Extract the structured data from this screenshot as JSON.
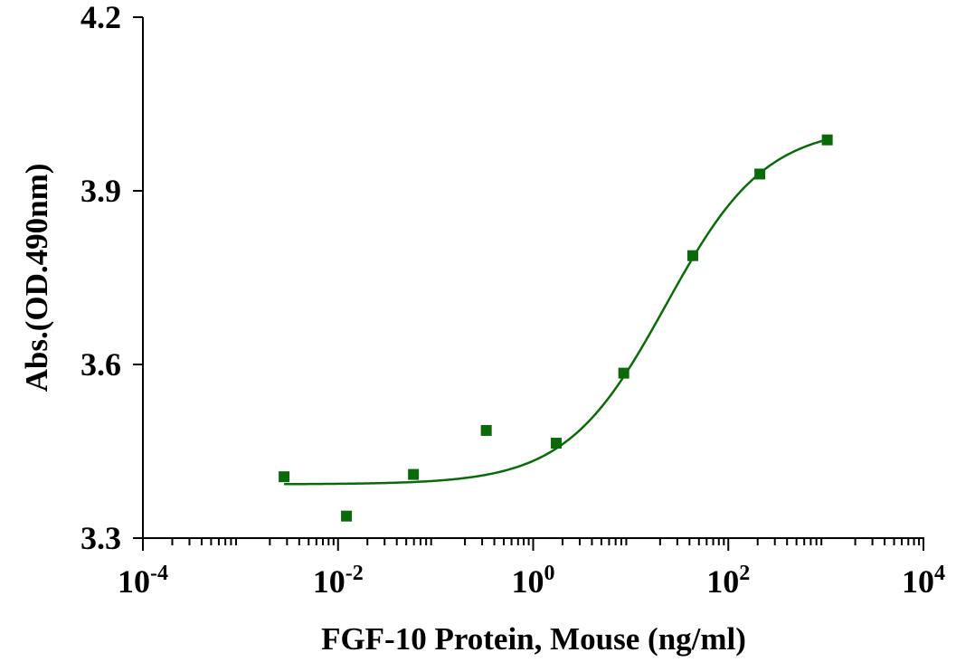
{
  "chart_data": {
    "type": "scatter",
    "xlabel": "FGF-10 Protein, Mouse (ng/ml)",
    "ylabel": "Abs.(OD.490nm)",
    "x_scale": "log",
    "xlim": [
      0.0001,
      10000
    ],
    "ylim": [
      3.3,
      4.2
    ],
    "x_ticks": [
      {
        "value": 0.0001,
        "base": "10",
        "exp": "-4"
      },
      {
        "value": 0.01,
        "base": "10",
        "exp": "-2"
      },
      {
        "value": 1,
        "base": "10",
        "exp": "0"
      },
      {
        "value": 100,
        "base": "10",
        "exp": "2"
      },
      {
        "value": 10000,
        "base": "10",
        "exp": "4"
      }
    ],
    "y_ticks": [
      "3.3",
      "3.6",
      "3.9",
      "4.2"
    ],
    "grid": false,
    "colors": {
      "series": "#0a6a0a",
      "axis": "#000000"
    },
    "series": [
      {
        "marker": "square",
        "x": [
          0.0028,
          0.0122,
          0.0593,
          0.3307,
          1.722,
          8.484,
          43.24,
          210.4,
          1033
        ],
        "y": [
          3.406,
          3.338,
          3.41,
          3.486,
          3.464,
          3.585,
          3.788,
          3.929,
          3.988
        ]
      }
    ],
    "fit": {
      "type": "4PL",
      "bottom": 3.393,
      "top": 4.012,
      "ec50": 22.9,
      "hill": 0.85,
      "x_range": [
        0.0028,
        1033
      ]
    }
  }
}
